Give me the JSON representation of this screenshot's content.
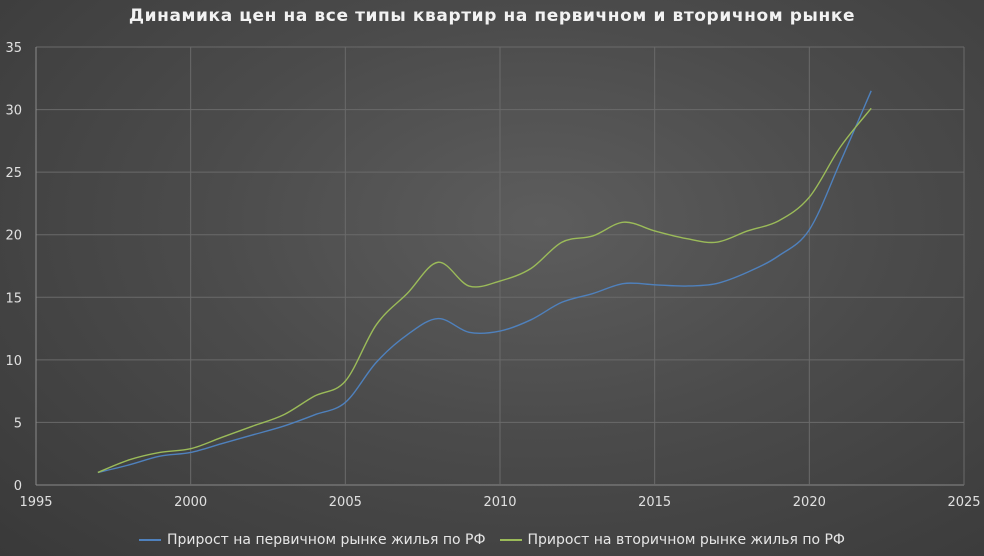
{
  "chart_data": {
    "type": "line",
    "title": "Динамика цен на все типы квартир на первичном и вторичном рынке",
    "xlabel": "",
    "ylabel": "",
    "xlim": [
      1995,
      2025
    ],
    "ylim": [
      0,
      35
    ],
    "x_ticks": [
      1995,
      2000,
      2005,
      2010,
      2015,
      2020,
      2025
    ],
    "y_ticks": [
      0,
      5,
      10,
      15,
      20,
      25,
      30,
      35
    ],
    "grid": true,
    "legend_position": "bottom",
    "series": [
      {
        "name": "Прирост на первичном рынке жилья по РФ",
        "color": "#4f81bd",
        "x": [
          1997,
          1998,
          1999,
          2000,
          2001,
          2002,
          2003,
          2004,
          2005,
          2006,
          2007,
          2008,
          2009,
          2010,
          2011,
          2012,
          2013,
          2014,
          2015,
          2016,
          2017,
          2018,
          2019,
          2020,
          2021,
          2022
        ],
        "values": [
          1.0,
          1.6,
          2.3,
          2.6,
          3.3,
          4.0,
          4.7,
          5.6,
          6.6,
          9.8,
          12.0,
          13.3,
          12.2,
          12.3,
          13.2,
          14.6,
          15.3,
          16.1,
          16.0,
          15.9,
          16.1,
          17.0,
          18.3,
          20.4,
          25.8,
          31.5
        ]
      },
      {
        "name": "Прирост на вторичном рынке жилья по РФ",
        "color": "#9bbb59",
        "x": [
          1997,
          1998,
          1999,
          2000,
          2001,
          2002,
          2003,
          2004,
          2005,
          2006,
          2007,
          2008,
          2009,
          2010,
          2011,
          2012,
          2013,
          2014,
          2015,
          2016,
          2017,
          2018,
          2019,
          2020,
          2021,
          2022
        ],
        "values": [
          1.0,
          2.0,
          2.6,
          2.9,
          3.8,
          4.7,
          5.6,
          7.1,
          8.3,
          12.8,
          15.3,
          17.8,
          15.9,
          16.3,
          17.3,
          19.4,
          19.9,
          21.0,
          20.3,
          19.7,
          19.4,
          20.3,
          21.1,
          23.0,
          27.0,
          30.1
        ]
      }
    ]
  }
}
